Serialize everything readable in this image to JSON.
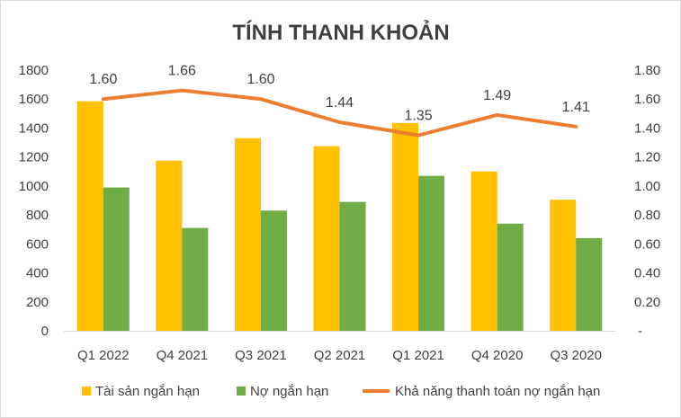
{
  "chart_data": {
    "type": "bar",
    "title": "TÍNH THANH KHOẢN",
    "categories": [
      "Q1 2022",
      "Q4 2021",
      "Q3 2021",
      "Q2 2021",
      "Q1 2021",
      "Q4 2020",
      "Q3 2020"
    ],
    "series": [
      {
        "name": "Tài sản ngắn hạn",
        "type": "bar",
        "axis": "left",
        "color": "#FFC000",
        "values": [
          1585,
          1175,
          1330,
          1275,
          1435,
          1100,
          905
        ]
      },
      {
        "name": "Nợ ngắn hạn",
        "type": "bar",
        "axis": "left",
        "color": "#70AD47",
        "values": [
          990,
          710,
          830,
          890,
          1070,
          740,
          640
        ]
      },
      {
        "name": "Khả năng thanh toán nợ ngắn hạn",
        "type": "line",
        "axis": "right",
        "color": "#ED7D31",
        "values": [
          1.6,
          1.66,
          1.6,
          1.44,
          1.35,
          1.49,
          1.41
        ],
        "data_labels": [
          "1.60",
          "1.66",
          "1.60",
          "1.44",
          "1.35",
          "1.49",
          "1.41"
        ]
      }
    ],
    "y_left": {
      "ylim": [
        0,
        1800
      ],
      "ticks": [
        "0",
        "200",
        "400",
        "600",
        "800",
        "1000",
        "1200",
        "1400",
        "1600",
        "1800"
      ]
    },
    "y_right": {
      "ylim": [
        0,
        1.8
      ],
      "ticks": [
        "-",
        "0.20",
        "0.40",
        "0.60",
        "0.80",
        "1.00",
        "1.20",
        "1.40",
        "1.60",
        "1.80"
      ]
    },
    "grid": false,
    "legend_position": "bottom"
  }
}
